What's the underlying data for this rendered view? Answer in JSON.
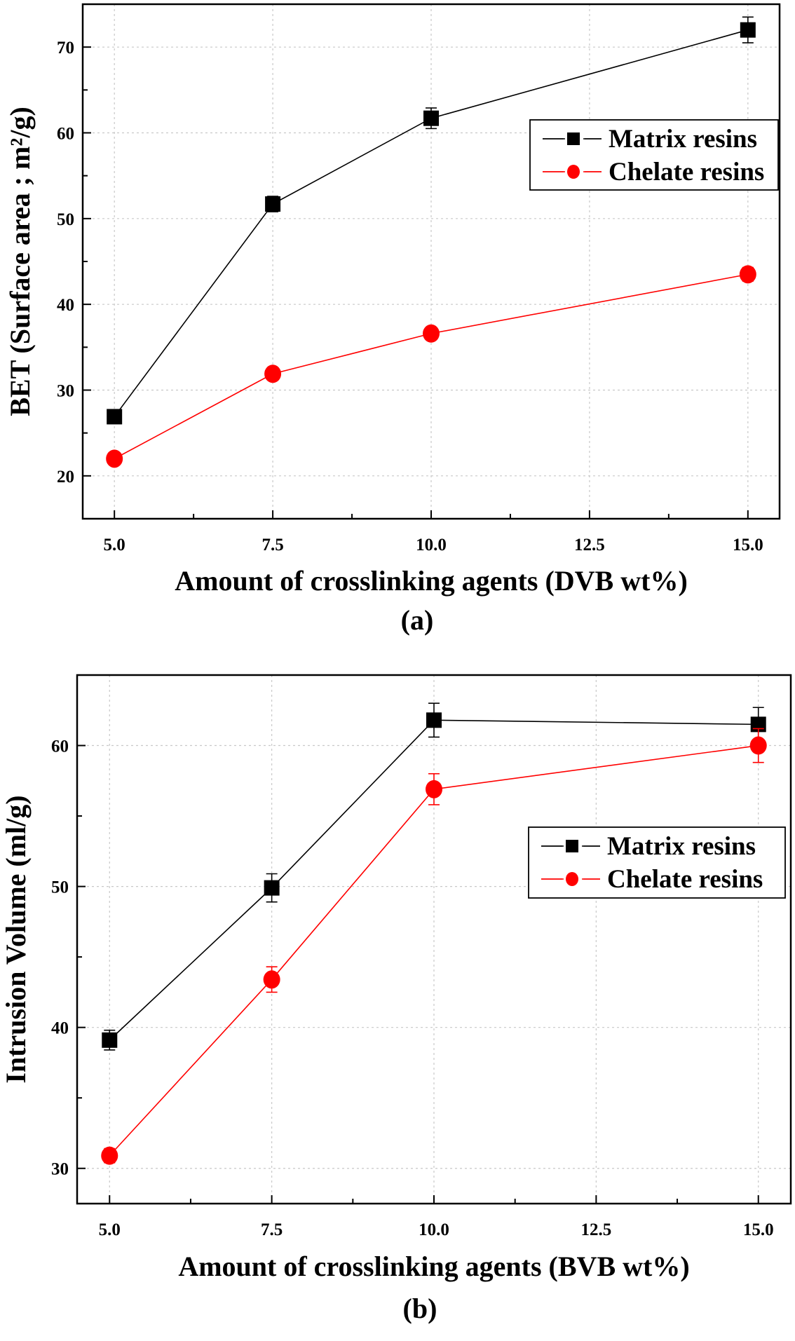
{
  "chart_data": [
    {
      "type": "line",
      "panel_label": "(a)",
      "xlabel": "Amount of crosslinking agents  (DVB wt%)",
      "ylabel": "BET (Surface area ; m²/g)",
      "xlim": [
        4.5,
        15.5
      ],
      "ylim": [
        15,
        75
      ],
      "xticks": [
        5.0,
        7.5,
        10.0,
        12.5,
        15.0
      ],
      "xtick_labels": [
        "5.0",
        "7.5",
        "10.0",
        "12.5",
        "15.0"
      ],
      "yticks": [
        20,
        30,
        40,
        50,
        60,
        70
      ],
      "ytick_labels": [
        "20",
        "30",
        "40",
        "50",
        "60",
        "70"
      ],
      "grid": true,
      "legend_position": "upper-right",
      "x": [
        5.0,
        7.5,
        10.0,
        15.0
      ],
      "series": [
        {
          "name": "Matrix resins",
          "values": [
            26.9,
            51.7,
            61.7,
            72.0
          ],
          "errors": [
            0.6,
            0.9,
            1.2,
            1.5
          ],
          "color": "#000000",
          "marker": "square"
        },
        {
          "name": "Chelate resins",
          "values": [
            22.0,
            31.9,
            36.6,
            43.5
          ],
          "errors": [
            0.5,
            0.6,
            0.7,
            0.8
          ],
          "color": "#ff0000",
          "marker": "circle"
        }
      ]
    },
    {
      "type": "line",
      "panel_label": "(b)",
      "xlabel": "Amount of crosslinking agents (BVB wt%)",
      "ylabel": "Intrusion Volume (ml/g)",
      "xlim": [
        4.5,
        15.5
      ],
      "ylim": [
        27.5,
        65
      ],
      "xticks": [
        5.0,
        7.5,
        10.0,
        12.5,
        15.0
      ],
      "xtick_labels": [
        "5.0",
        "7.5",
        "10.0",
        "12.5",
        "15.0"
      ],
      "yticks": [
        30,
        40,
        50,
        60
      ],
      "ytick_labels": [
        "30",
        "40",
        "50",
        "60"
      ],
      "grid": true,
      "legend_position": "right",
      "x": [
        5.0,
        7.5,
        10.0,
        15.0
      ],
      "series": [
        {
          "name": "Matrix resins",
          "values": [
            39.1,
            49.9,
            61.8,
            61.5
          ],
          "errors": [
            0.7,
            1.0,
            1.2,
            1.2
          ],
          "color": "#000000",
          "marker": "square"
        },
        {
          "name": "Chelate resins",
          "values": [
            30.9,
            43.4,
            56.9,
            60.0
          ],
          "errors": [
            0.5,
            0.9,
            1.1,
            1.2
          ],
          "color": "#ff0000",
          "marker": "circle"
        }
      ]
    }
  ]
}
